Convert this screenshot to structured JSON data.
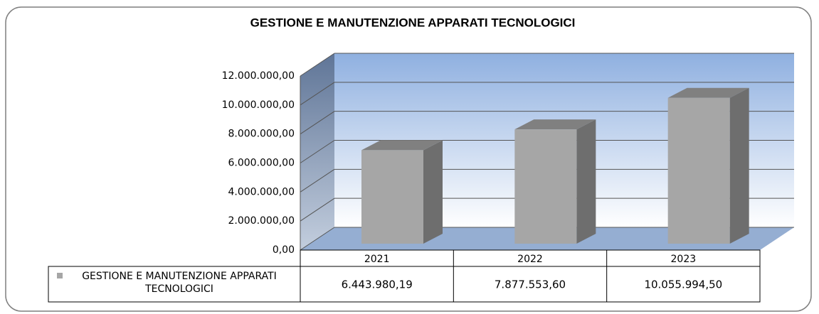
{
  "chart_data": {
    "type": "bar3d",
    "title": "GESTIONE E MANUTENZIONE APPARATI TECNOLOGICI",
    "categories": [
      "2021",
      "2022",
      "2023"
    ],
    "series": [
      {
        "name": "GESTIONE E MANUTENZIONE APPARATI TECNOLOGICI",
        "color": "#a6a6a6",
        "values": [
          6443980.19,
          7877553.6,
          10055994.5
        ],
        "value_labels": [
          "6.443.980,19",
          "7.877.553,60",
          "10.055.994,50"
        ]
      }
    ],
    "ylim": [
      0,
      12000000
    ],
    "yticks": [
      {
        "value": 0,
        "label": "0,00"
      },
      {
        "value": 2000000,
        "label": "2.000.000,00"
      },
      {
        "value": 4000000,
        "label": "4.000.000,00"
      },
      {
        "value": 6000000,
        "label": "6.000.000,00"
      },
      {
        "value": 8000000,
        "label": "8.000.000,00"
      },
      {
        "value": 10000000,
        "label": "10.000.000,00"
      },
      {
        "value": 12000000,
        "label": "12.000.000,00"
      }
    ],
    "grid": true,
    "data_table": true
  }
}
